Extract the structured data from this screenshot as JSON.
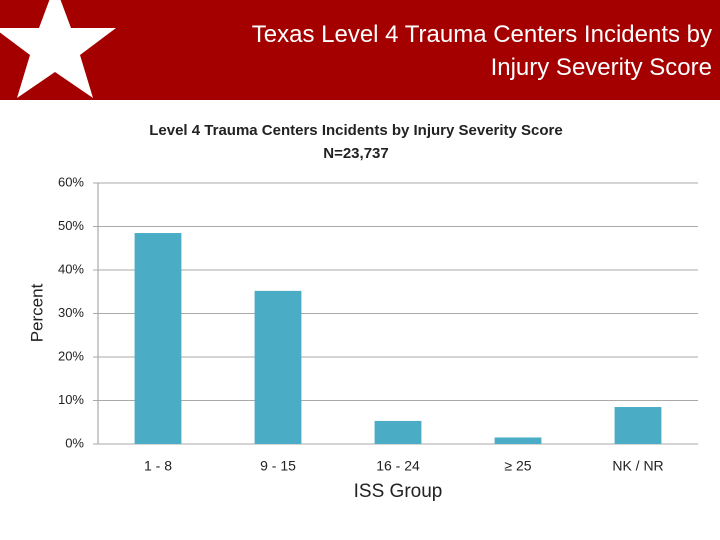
{
  "header": {
    "title": "Texas Level 4 Trauma Centers Incidents by Injury Severity Score"
  },
  "chart_data": {
    "type": "bar",
    "title": "Level 4 Trauma Centers Incidents by Injury Severity Score",
    "subtitle": "N=23,737",
    "x_label": "ISS Group",
    "y_label": "Percent",
    "categories": [
      "1 - 8",
      "9 - 15",
      "16 - 24",
      "≥ 25",
      "NK / NR"
    ],
    "values": [
      48.5,
      35.2,
      5.3,
      1.5,
      8.5
    ],
    "color": "#4bacc6",
    "ylim": [
      0,
      60
    ],
    "yticks": [
      {
        "value": 0,
        "label": "0%"
      },
      {
        "value": 10,
        "label": "10%"
      },
      {
        "value": 20,
        "label": "20%"
      },
      {
        "value": 30,
        "label": "30%"
      },
      {
        "value": 40,
        "label": "40%"
      },
      {
        "value": 50,
        "label": "50%"
      },
      {
        "value": 60,
        "label": "60%"
      }
    ],
    "grid": true
  }
}
